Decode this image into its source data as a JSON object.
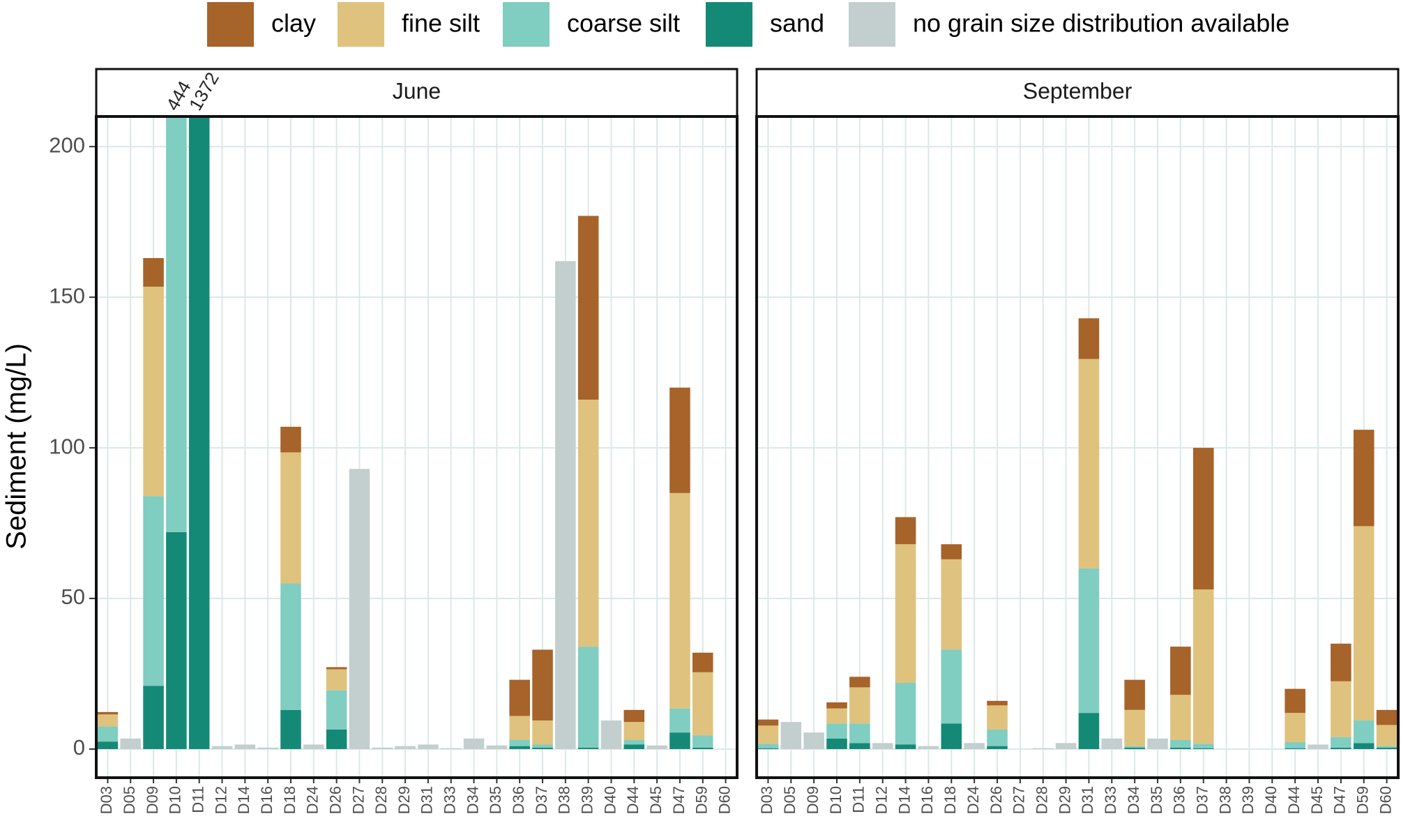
{
  "chart_data": {
    "type": "bar",
    "stacked": true,
    "ylabel": "Sediment (mg/L)",
    "ylim": [
      -9.5,
      210
    ],
    "yticks": [
      0,
      50,
      100,
      150,
      200
    ],
    "grid": true,
    "series": [
      {
        "name": "clay",
        "color": "#a6632a"
      },
      {
        "name": "fine silt",
        "color": "#dfc27d"
      },
      {
        "name": "coarse silt",
        "color": "#80cdc1"
      },
      {
        "name": "sand",
        "color": "#148a76"
      },
      {
        "name": "no grain size distribution available",
        "color": "#c3cfcf"
      }
    ],
    "facets": [
      {
        "title": "June",
        "categories": [
          "D03",
          "D05",
          "D09",
          "D10",
          "D11",
          "D12",
          "D14",
          "D16",
          "D18",
          "D24",
          "D26",
          "D27",
          "D28",
          "D29",
          "D31",
          "D33",
          "D34",
          "D35",
          "D36",
          "D37",
          "D38",
          "D39",
          "D40",
          "D44",
          "D45",
          "D47",
          "D59",
          "D60"
        ],
        "series": [
          {
            "values": [
              0.8,
              null,
              9.5,
              null,
              null,
              null,
              null,
              null,
              8.5,
              null,
              0.7,
              null,
              null,
              null,
              null,
              null,
              null,
              null,
              12,
              23.5,
              null,
              61,
              null,
              4,
              null,
              35,
              6.5,
              null
            ]
          },
          {
            "values": [
              4,
              null,
              69.5,
              null,
              null,
              null,
              null,
              null,
              43.5,
              null,
              7,
              null,
              null,
              null,
              null,
              null,
              null,
              null,
              8,
              8,
              null,
              82,
              null,
              6,
              null,
              71.5,
              21,
              null
            ]
          },
          {
            "values": [
              5,
              null,
              63,
              372,
              null,
              null,
              null,
              null,
              42,
              null,
              13,
              null,
              null,
              null,
              null,
              null,
              null,
              null,
              2,
              1,
              null,
              33.5,
              null,
              1.5,
              null,
              8,
              4,
              null
            ]
          },
          {
            "values": [
              2.5,
              null,
              21,
              72,
              1372,
              null,
              null,
              null,
              13,
              null,
              6.5,
              null,
              null,
              null,
              null,
              null,
              null,
              null,
              1,
              0.5,
              null,
              0.5,
              null,
              1.5,
              null,
              5.5,
              0.5,
              null
            ]
          },
          {
            "values": [
              null,
              3.5,
              null,
              null,
              null,
              1,
              1.5,
              0.5,
              null,
              1.5,
              null,
              93,
              0.5,
              1,
              1.5,
              0.3,
              3.5,
              1.2,
              null,
              null,
              162,
              null,
              9.5,
              null,
              1.2,
              null,
              null,
              null
            ]
          }
        ],
        "annotations": [
          {
            "category": "D10",
            "text": "444"
          },
          {
            "category": "D11",
            "text": "1372"
          }
        ]
      },
      {
        "title": "September",
        "categories": [
          "D03",
          "D05",
          "D09",
          "D10",
          "D11",
          "D12",
          "D14",
          "D16",
          "D18",
          "D24",
          "D26",
          "D27",
          "D28",
          "D29",
          "D31",
          "D33",
          "D34",
          "D35",
          "D36",
          "D37",
          "D38",
          "D39",
          "D40",
          "D44",
          "D45",
          "D47",
          "D59",
          "D60"
        ],
        "series": [
          {
            "values": [
              2,
              null,
              null,
              2,
              3.5,
              null,
              9,
              null,
              5,
              null,
              1.5,
              null,
              null,
              null,
              13.5,
              null,
              10,
              null,
              16,
              47,
              null,
              null,
              null,
              8,
              null,
              12.5,
              32,
              5
            ]
          },
          {
            "values": [
              6,
              null,
              null,
              5,
              12,
              null,
              46,
              null,
              30,
              null,
              8,
              null,
              null,
              null,
              69.5,
              null,
              12,
              null,
              15,
              51.2,
              null,
              null,
              null,
              9.7,
              null,
              18.5,
              64.5,
              7
            ]
          },
          {
            "values": [
              1.5,
              null,
              null,
              5,
              6.5,
              null,
              20.5,
              null,
              24.5,
              null,
              5.5,
              null,
              null,
              null,
              48,
              null,
              0.5,
              null,
              2.5,
              1.5,
              null,
              null,
              null,
              2,
              null,
              3.5,
              7.5,
              0.5
            ]
          },
          {
            "values": [
              0.3,
              null,
              null,
              3.5,
              2,
              null,
              1.5,
              null,
              8.5,
              null,
              1,
              null,
              null,
              null,
              12,
              null,
              0.5,
              null,
              0.5,
              0.3,
              null,
              null,
              null,
              0.3,
              null,
              0.5,
              2,
              0.5
            ]
          },
          {
            "values": [
              null,
              9,
              5.5,
              null,
              null,
              2,
              null,
              1,
              null,
              2,
              null,
              null,
              0.3,
              2,
              null,
              3.5,
              null,
              3.5,
              null,
              null,
              null,
              null,
              null,
              null,
              1.5,
              null,
              null,
              null
            ]
          }
        ]
      }
    ]
  }
}
